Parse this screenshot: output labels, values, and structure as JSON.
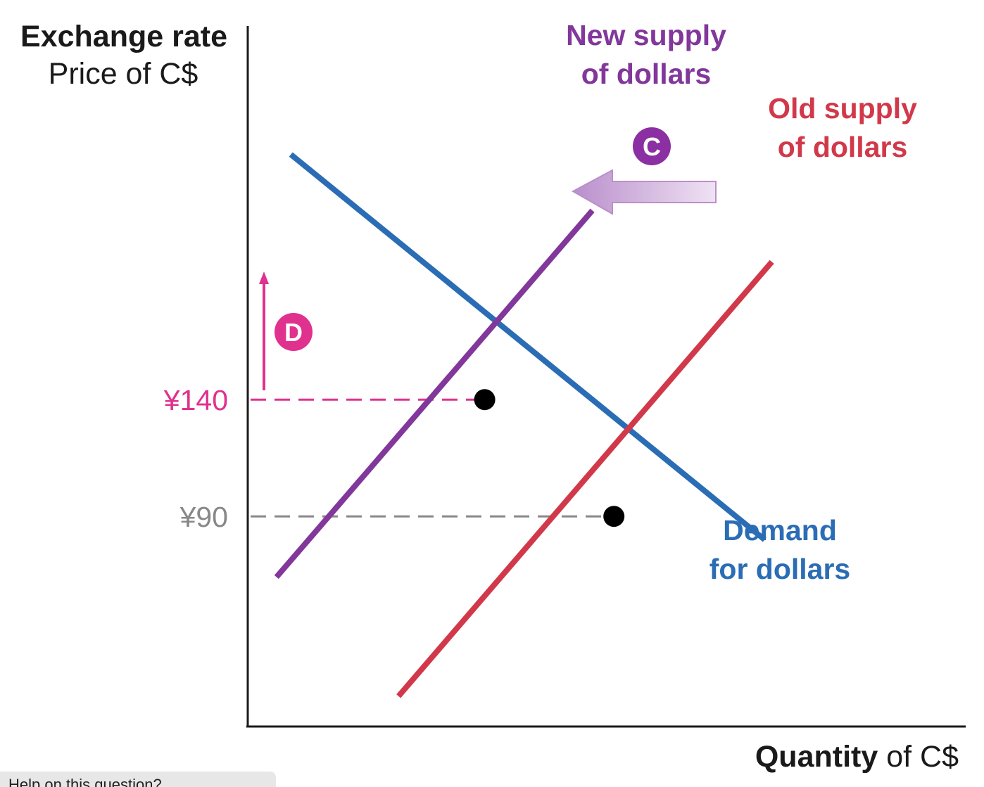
{
  "chart_data": {
    "type": "line",
    "ylabel_title": "Exchange rate",
    "ylabel_sub": "Price of C$",
    "xlabel_bold": "Quantity",
    "xlabel_rest": " of C$",
    "y_ticks": [
      {
        "label": "¥140",
        "value": 140,
        "color": "#e0318f"
      },
      {
        "label": "¥90",
        "value": 90,
        "color": "#888888"
      }
    ],
    "ylim": [
      0,
      300
    ],
    "xlim": [
      0,
      100
    ],
    "series": [
      {
        "name_lines": [
          "Demand",
          "for dollars"
        ],
        "color": "#2b6db5",
        "points": [
          [
            6,
            245
          ],
          [
            72,
            80
          ]
        ]
      },
      {
        "name_lines": [
          "New supply",
          "of dollars"
        ],
        "color": "#82379b",
        "points": [
          [
            4,
            64
          ],
          [
            48,
            221
          ]
        ]
      },
      {
        "name_lines": [
          "Old supply",
          "of dollars"
        ],
        "color": "#d1394a",
        "points": [
          [
            21,
            13
          ],
          [
            73,
            199
          ]
        ]
      }
    ],
    "equilibria": [
      {
        "x": 33,
        "y": 140
      },
      {
        "x": 51,
        "y": 90
      }
    ],
    "annotations": [
      {
        "label": "C",
        "color": "#8b2fa3",
        "meaning": "supply shifts left"
      },
      {
        "label": "D",
        "color": "#e0318f",
        "meaning": "rate rises from ¥90 to ¥140"
      }
    ]
  },
  "footer_text": "Help on this question?"
}
